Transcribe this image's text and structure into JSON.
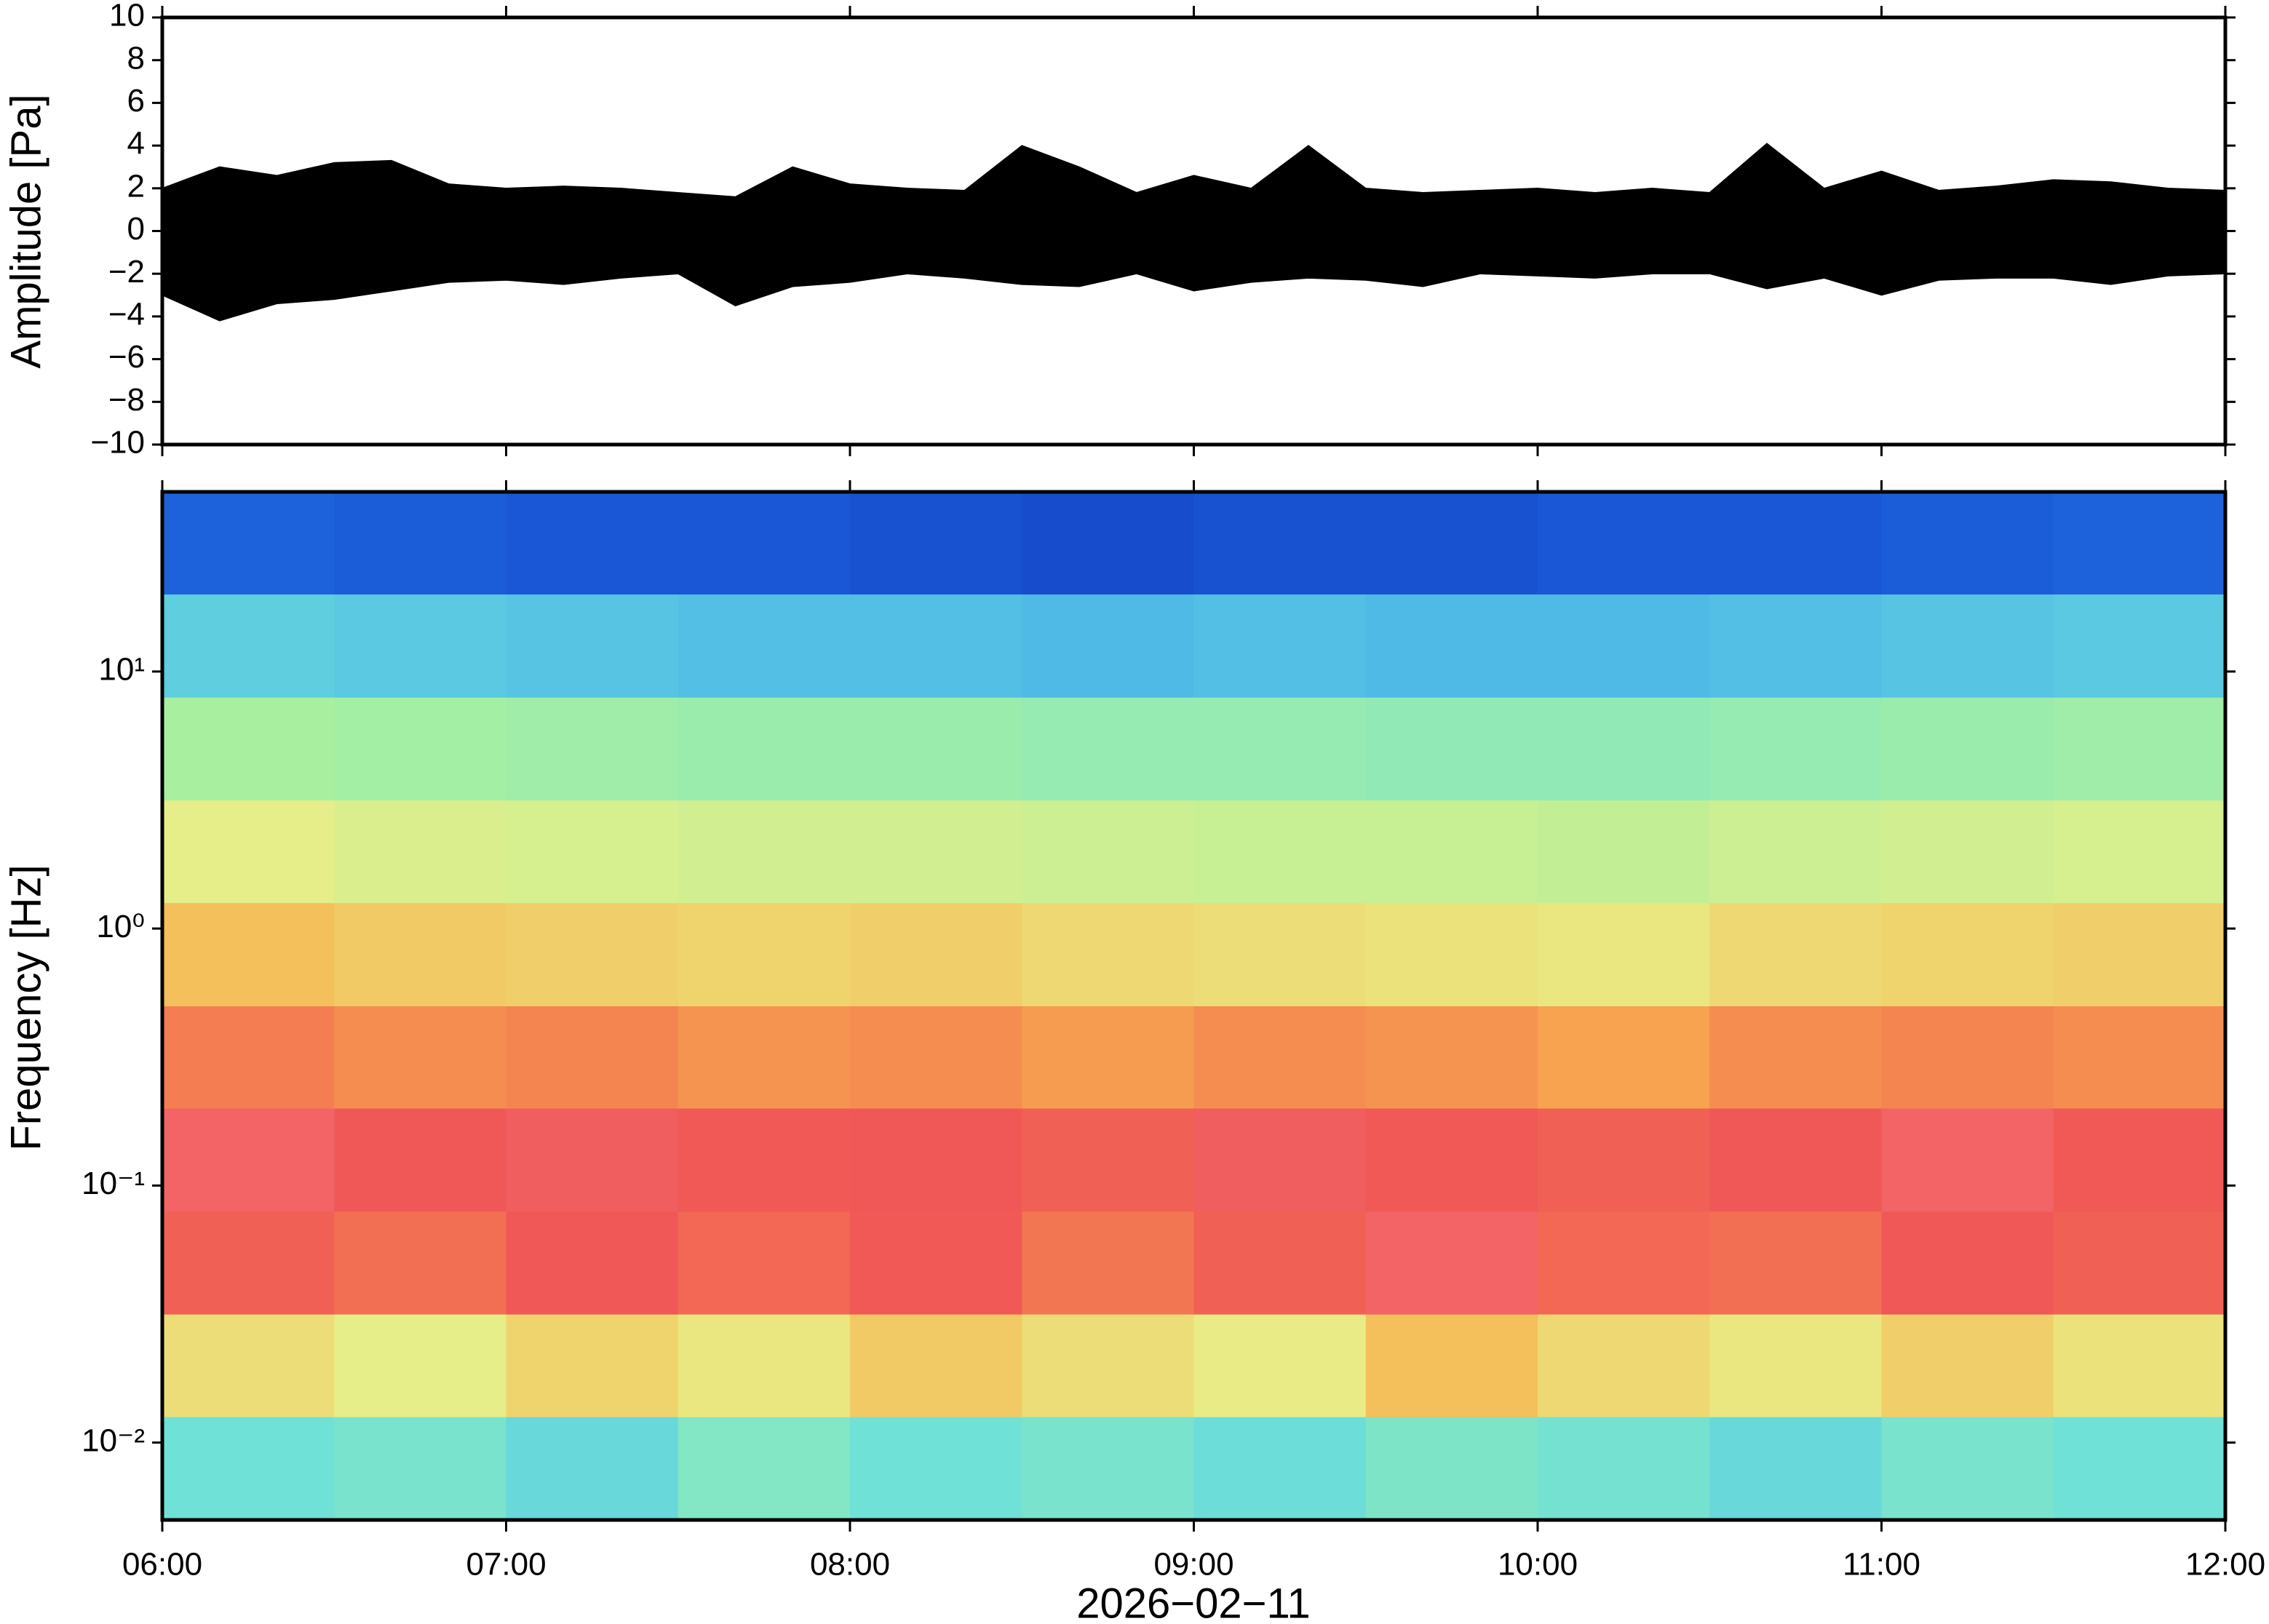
{
  "chart_data": [
    {
      "type": "waveform",
      "ylabel": "Amplitude [Pa]",
      "color": "#000000",
      "xlim": [
        "06:00",
        "12:00"
      ],
      "xticks": [
        "06:00",
        "07:00",
        "08:00",
        "09:00",
        "10:00",
        "11:00",
        "12:00"
      ],
      "ylim": [
        -10,
        10
      ],
      "yticks": [
        10,
        8,
        6,
        4,
        2,
        0,
        {
          "value": -2,
          "label": "−2"
        },
        {
          "value": -4,
          "label": "−4"
        },
        {
          "value": -6,
          "label": "−6"
        },
        {
          "value": -8,
          "label": "−8"
        },
        {
          "value": -10,
          "label": "−10"
        }
      ],
      "x": [
        "06:00",
        "06:10",
        "06:20",
        "06:30",
        "06:40",
        "06:50",
        "07:00",
        "07:10",
        "07:20",
        "07:30",
        "07:40",
        "07:50",
        "08:00",
        "08:10",
        "08:20",
        "08:30",
        "08:40",
        "08:50",
        "09:00",
        "09:10",
        "09:20",
        "09:30",
        "09:40",
        "09:50",
        "10:00",
        "10:10",
        "10:20",
        "10:30",
        "10:40",
        "10:50",
        "11:00",
        "11:10",
        "11:20",
        "11:30",
        "11:40",
        "11:50",
        "12:00"
      ],
      "max": [
        2.0,
        3.0,
        2.6,
        3.2,
        3.3,
        2.2,
        2.0,
        2.1,
        2.0,
        1.8,
        1.6,
        3.0,
        2.2,
        2.0,
        1.9,
        4.0,
        3.0,
        1.8,
        2.6,
        2.0,
        4.0,
        2.0,
        1.8,
        1.9,
        2.0,
        1.8,
        2.0,
        1.8,
        4.1,
        2.0,
        2.8,
        1.9,
        2.1,
        2.4,
        2.3,
        2.0,
        1.9
      ],
      "min": [
        -3.0,
        -4.2,
        -3.4,
        -3.2,
        -2.8,
        -2.4,
        -2.3,
        -2.5,
        -2.2,
        -2.0,
        -3.5,
        -2.6,
        -2.4,
        -2.0,
        -2.2,
        -2.5,
        -2.6,
        -2.0,
        -2.8,
        -2.4,
        -2.2,
        -2.3,
        -2.6,
        -2.0,
        -2.1,
        -2.2,
        -2.0,
        -2.0,
        -2.7,
        -2.2,
        -3.0,
        -2.3,
        -2.2,
        -2.2,
        -2.5,
        -2.1,
        -2.0
      ]
    },
    {
      "type": "spectrogram",
      "ylabel": "Frequency [Hz]",
      "xlabel": "2026−02−11",
      "xlim": [
        "06:00",
        "12:00"
      ],
      "xticks": [
        "06:00",
        "07:00",
        "08:00",
        "09:00",
        "10:00",
        "11:00",
        "12:00"
      ],
      "ylim": [
        0.005,
        50
      ],
      "log_y": true,
      "yticks": [
        {
          "value": 10,
          "label": "10¹"
        },
        {
          "value": 1,
          "label": "10⁰"
        },
        {
          "value": 0.1,
          "label": "10⁻¹"
        },
        {
          "value": 0.01,
          "label": "10⁻²"
        }
      ],
      "colormap": [
        "#0a1a9a",
        "#1a5ad8",
        "#3aa0f0",
        "#6ee0d8",
        "#a8f0a0",
        "#e8ee88",
        "#f8b24e",
        "#f05555",
        "#f8a0a8"
      ],
      "time_bins": [
        "06:00",
        "06:30",
        "07:00",
        "07:30",
        "08:00",
        "08:30",
        "09:00",
        "09:30",
        "10:00",
        "10:30",
        "11:00",
        "11:30",
        "12:00"
      ],
      "freq_bins": [
        0.005,
        0.0126,
        0.0316,
        0.0794,
        0.2,
        0.5,
        1.26,
        3.16,
        7.94,
        20,
        50
      ],
      "z": [
        [
          0.38,
          0.4,
          0.36,
          0.42,
          0.38,
          0.4,
          0.37,
          0.41,
          0.39,
          0.36,
          0.4,
          0.38
        ],
        [
          0.66,
          0.62,
          0.68,
          0.64,
          0.7,
          0.66,
          0.63,
          0.72,
          0.67,
          0.64,
          0.69,
          0.65
        ],
        [
          0.86,
          0.84,
          0.88,
          0.85,
          0.87,
          0.83,
          0.86,
          0.9,
          0.85,
          0.84,
          0.88,
          0.86
        ],
        [
          0.9,
          0.88,
          0.89,
          0.87,
          0.88,
          0.86,
          0.89,
          0.87,
          0.86,
          0.88,
          0.9,
          0.87
        ],
        [
          0.82,
          0.8,
          0.81,
          0.79,
          0.8,
          0.78,
          0.8,
          0.79,
          0.77,
          0.8,
          0.81,
          0.8
        ],
        [
          0.72,
          0.7,
          0.69,
          0.68,
          0.69,
          0.67,
          0.66,
          0.65,
          0.64,
          0.67,
          0.68,
          0.69
        ],
        [
          0.62,
          0.6,
          0.59,
          0.58,
          0.58,
          0.57,
          0.56,
          0.56,
          0.55,
          0.57,
          0.58,
          0.59
        ],
        [
          0.5,
          0.49,
          0.48,
          0.47,
          0.47,
          0.46,
          0.46,
          0.45,
          0.45,
          0.46,
          0.47,
          0.48
        ],
        [
          0.34,
          0.33,
          0.32,
          0.31,
          0.31,
          0.3,
          0.31,
          0.3,
          0.3,
          0.31,
          0.32,
          0.33
        ],
        [
          0.14,
          0.13,
          0.12,
          0.12,
          0.11,
          0.1,
          0.11,
          0.11,
          0.12,
          0.12,
          0.13,
          0.14
        ]
      ]
    }
  ]
}
